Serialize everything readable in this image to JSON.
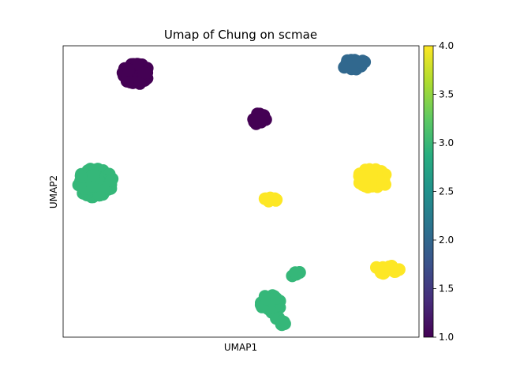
{
  "chart_data": {
    "type": "scatter",
    "title": "Umap of Chung on scmae",
    "xlabel": "UMAP1",
    "ylabel": "UMAP2",
    "xlim": [
      0,
      100
    ],
    "ylim": [
      0,
      100
    ],
    "x_ticks_shown": false,
    "y_ticks_shown": false,
    "colorbar": {
      "colormap": "viridis",
      "range": [
        1.0,
        4.0
      ],
      "ticks": [
        1.0,
        1.5,
        2.0,
        2.5,
        3.0,
        3.5,
        4.0
      ],
      "tick_labels": [
        "1.0",
        "1.5",
        "2.0",
        "2.5",
        "3.0",
        "3.5",
        "4.0"
      ]
    },
    "clusters": [
      {
        "label": 1,
        "color": "#440154",
        "cx": 20.5,
        "cy": 90.5,
        "rx": 3.8,
        "ry": 3.6,
        "n": 60
      },
      {
        "label": 1,
        "color": "#440154",
        "cx": 55.3,
        "cy": 75.0,
        "rx": 2.0,
        "ry": 2.2,
        "n": 16
      },
      {
        "label": 2,
        "color": "#31688e",
        "cx": 82.0,
        "cy": 93.5,
        "rx": 3.5,
        "ry": 1.8,
        "n": 22
      },
      {
        "label": 3,
        "color": "#35b779",
        "cx": 9.0,
        "cy": 53.0,
        "rx": 5.0,
        "ry": 5.0,
        "n": 85
      },
      {
        "label": 3,
        "color": "#35b779",
        "cx": 58.5,
        "cy": 11.5,
        "rx": 3.0,
        "ry": 3.2,
        "n": 30
      },
      {
        "label": 3,
        "color": "#35b779",
        "cx": 61.0,
        "cy": 5.5,
        "rx": 1.5,
        "ry": 1.8,
        "n": 8
      },
      {
        "label": 3,
        "color": "#35b779",
        "cx": 65.5,
        "cy": 21.5,
        "rx": 1.6,
        "ry": 1.0,
        "n": 6
      },
      {
        "label": 4,
        "color": "#fde725",
        "cx": 87.0,
        "cy": 54.5,
        "rx": 4.5,
        "ry": 3.3,
        "n": 60
      },
      {
        "label": 4,
        "color": "#fde725",
        "cx": 58.5,
        "cy": 47.5,
        "rx": 1.8,
        "ry": 1.0,
        "n": 7
      },
      {
        "label": 4,
        "color": "#fde725",
        "cx": 91.0,
        "cy": 23.3,
        "rx": 3.5,
        "ry": 1.5,
        "n": 18
      }
    ]
  }
}
